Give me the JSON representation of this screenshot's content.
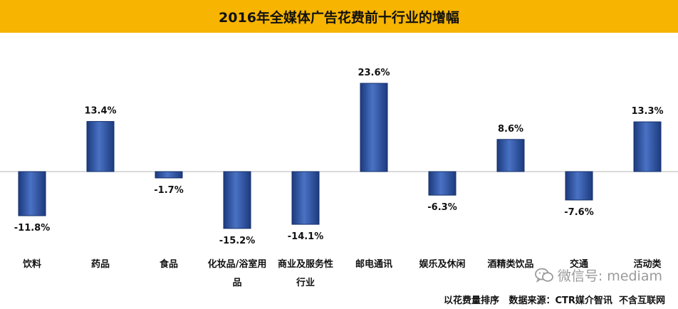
{
  "title": "2016年全媒体广告花费前十行业的增幅",
  "chart_data": {
    "type": "bar",
    "title": "2016年全媒体广告花费前十行业的增幅",
    "categories": [
      "饮料",
      "药品",
      "食品",
      "化妆品/浴室用品",
      "商业及服务性行业",
      "邮电通讯",
      "娱乐及休闲",
      "酒精类饮品",
      "交通",
      "活动类"
    ],
    "values": [
      -11.8,
      13.4,
      -1.7,
      -15.2,
      -14.1,
      23.6,
      -6.3,
      8.6,
      -7.6,
      13.3
    ],
    "data_labels": [
      "-11.8%",
      "13.4%",
      "-1.7%",
      "-15.2%",
      "-14.1%",
      "23.6%",
      "-6.3%",
      "8.6%",
      "-7.6%",
      "13.3%"
    ],
    "unit": "%",
    "ylim": [
      -20,
      25
    ],
    "grid": false,
    "bar_color": "#2e4f9c"
  },
  "watermark": {
    "icon": "wechat-icon",
    "text": "微信号: mediam"
  },
  "footnote": "以花费量排序   数据来源：CTR媒介智讯  不含互联网"
}
